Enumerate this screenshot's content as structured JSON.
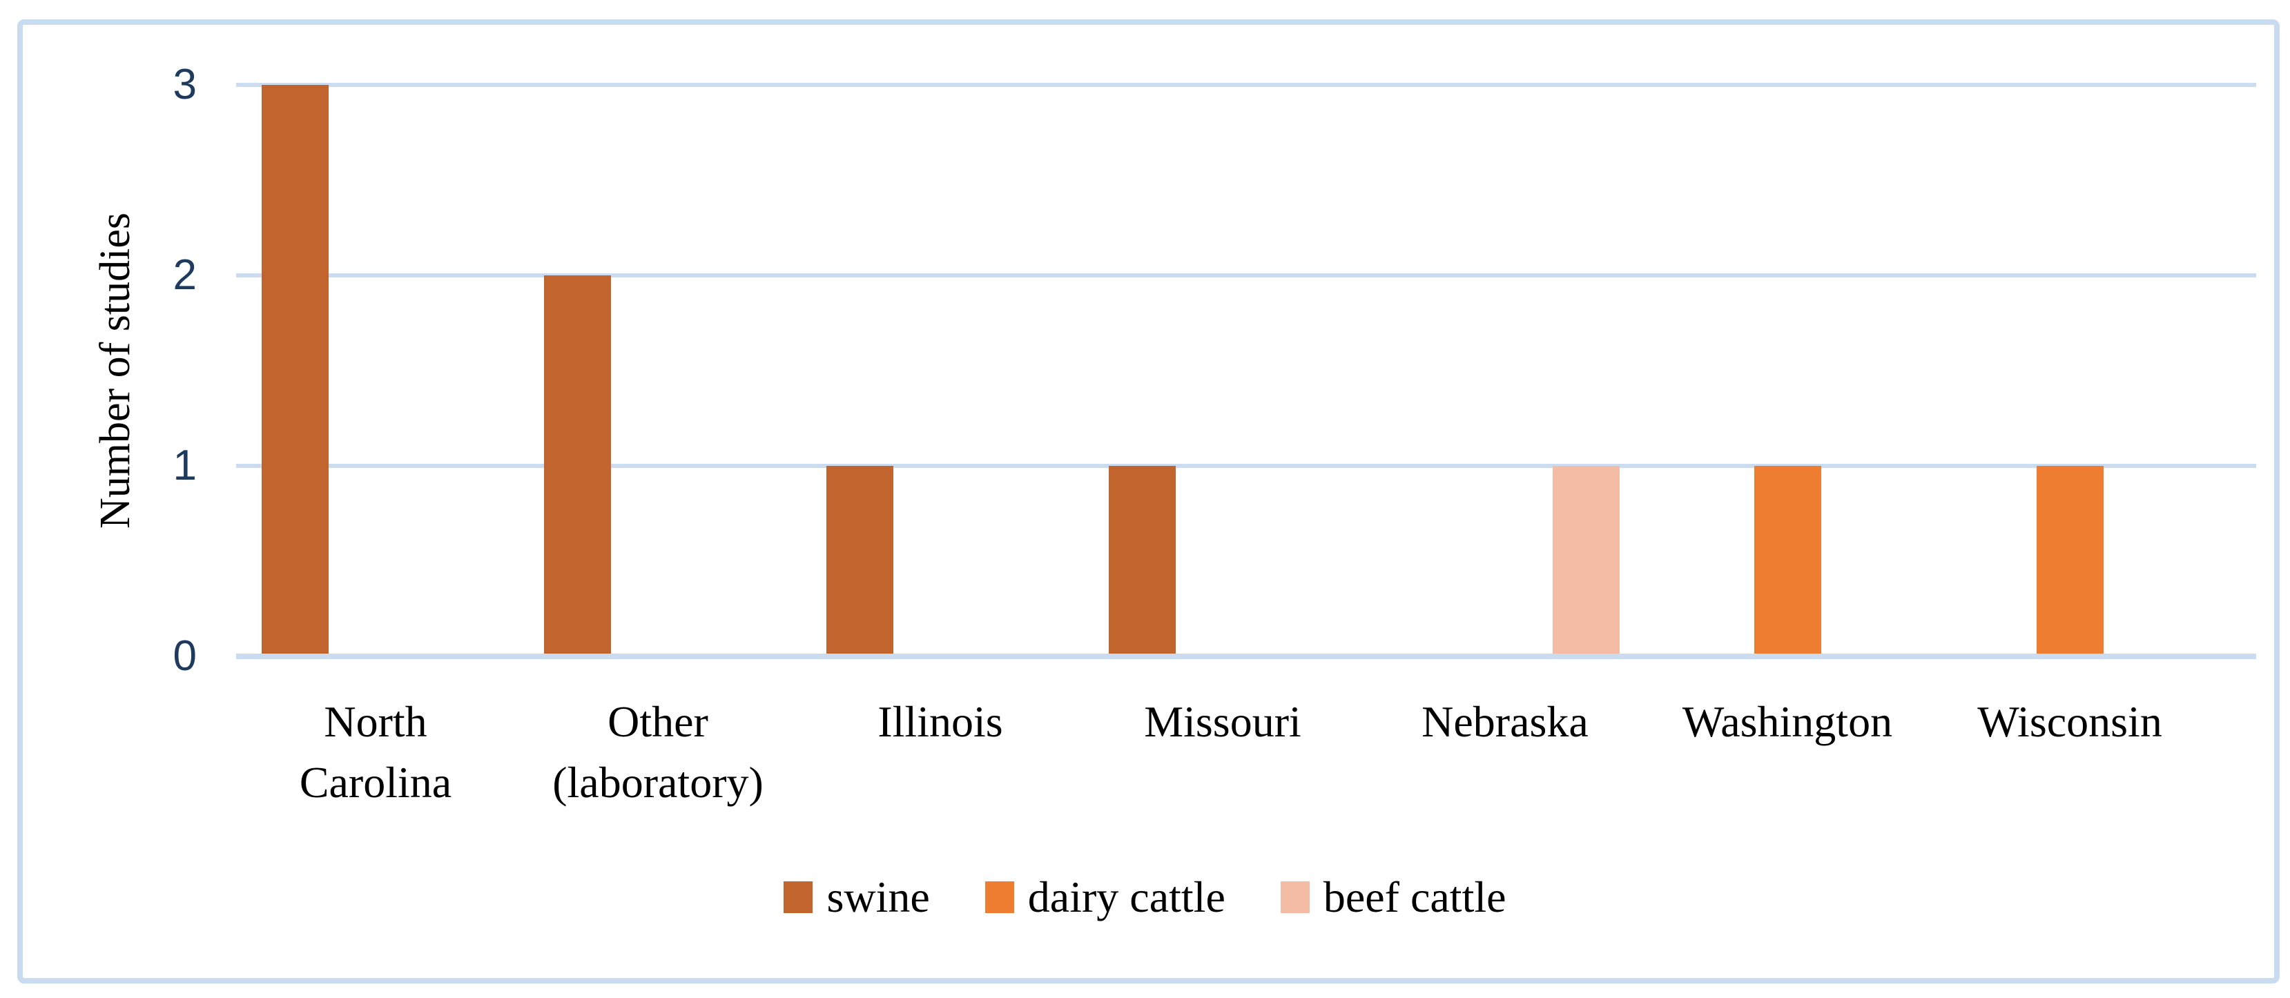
{
  "chart_data": {
    "type": "bar",
    "title": "",
    "xlabel": "",
    "ylabel": "Number of studies",
    "ylim": [
      0,
      3
    ],
    "yticks": [
      "0",
      "1",
      "2",
      "3"
    ],
    "grid": "horizontal gridlines at 1, 2, 3",
    "legend_position": "bottom",
    "categories": [
      "North Carolina",
      "Other (laboratory)",
      "Illinois",
      "Missouri",
      "Nebraska",
      "Washington",
      "Wisconsin"
    ],
    "category_label_lines": [
      [
        "North",
        "Carolina"
      ],
      [
        "Other",
        "(laboratory)"
      ],
      [
        "Illinois"
      ],
      [
        "Missouri"
      ],
      [
        "Nebraska"
      ],
      [
        "Washington"
      ],
      [
        "Wisconsin"
      ]
    ],
    "series": [
      {
        "name": "swine",
        "color": "#C2642D",
        "values": [
          3,
          2,
          1,
          1,
          0,
          0,
          0
        ]
      },
      {
        "name": "dairy cattle",
        "color": "#EE7D31",
        "values": [
          0,
          0,
          0,
          0,
          0,
          1,
          1
        ]
      },
      {
        "name": "beef cattle",
        "color": "#F4BCA5",
        "values": [
          0,
          0,
          0,
          0,
          1,
          0,
          0
        ]
      }
    ]
  },
  "legend": {
    "items": [
      {
        "label": "swine",
        "color": "#C2642D"
      },
      {
        "label": "dairy cattle",
        "color": "#EE7D31"
      },
      {
        "label": "beef cattle",
        "color": "#F4BCA5"
      }
    ]
  },
  "colors": {
    "background": "#FFFFFF",
    "figure_border": "#C8DBF0",
    "gridline": "#CBDCF1",
    "axis_line": "#CBDCF1",
    "tick_text": "#1E3A5F",
    "label_text": "#000000"
  }
}
